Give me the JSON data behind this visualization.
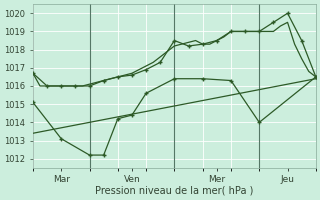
{
  "bg_color": "#cceedd",
  "grid_color": "#aaddcc",
  "line_color": "#2d5a27",
  "ylim": [
    1011.5,
    1020.5
  ],
  "yticks": [
    1012,
    1013,
    1014,
    1015,
    1016,
    1017,
    1018,
    1019,
    1020
  ],
  "xlabel": "Pression niveau de la mer( hPa )",
  "xlim": [
    0,
    240
  ],
  "vlines": [
    48,
    120,
    192
  ],
  "xtick_positions": [
    24,
    84,
    156,
    216
  ],
  "xtick_labels": [
    "Mar",
    "Ven",
    "Mer",
    "Jeu"
  ],
  "line1_x": [
    0,
    6,
    12,
    18,
    24,
    30,
    36,
    42,
    48,
    54,
    60,
    66,
    72,
    78,
    84,
    90,
    96,
    102,
    108,
    114,
    120,
    126,
    132,
    138,
    144,
    150,
    156,
    162,
    168,
    174,
    180,
    186,
    192,
    198,
    204,
    210,
    216,
    222,
    228,
    234,
    240
  ],
  "line1_y": [
    1016.7,
    1016.0,
    1016.0,
    1016.0,
    1016.0,
    1016.0,
    1016.0,
    1016.0,
    1016.1,
    1016.2,
    1016.3,
    1016.4,
    1016.5,
    1016.6,
    1016.7,
    1016.9,
    1017.1,
    1017.3,
    1017.6,
    1017.9,
    1018.2,
    1018.3,
    1018.4,
    1018.5,
    1018.3,
    1018.3,
    1018.5,
    1018.7,
    1019.0,
    1019.0,
    1019.0,
    1019.0,
    1019.0,
    1019.0,
    1019.0,
    1019.3,
    1019.5,
    1018.3,
    1017.5,
    1016.8,
    1016.5
  ],
  "line2_x": [
    0,
    12,
    24,
    36,
    48,
    60,
    72,
    84,
    96,
    108,
    120,
    132,
    144,
    156,
    168,
    180,
    192,
    204,
    216,
    228,
    240
  ],
  "line2_y": [
    1016.7,
    1016.0,
    1016.0,
    1016.0,
    1016.0,
    1016.3,
    1016.5,
    1016.6,
    1016.9,
    1017.3,
    1018.5,
    1018.2,
    1018.3,
    1018.5,
    1019.0,
    1019.0,
    1019.0,
    1019.5,
    1020.0,
    1018.5,
    1016.5
  ],
  "line3_x": [
    0,
    24,
    48,
    60,
    72,
    84,
    96,
    120,
    144,
    168,
    192,
    240
  ],
  "line3_y": [
    1015.1,
    1013.1,
    1012.2,
    1012.2,
    1014.2,
    1014.4,
    1015.6,
    1016.4,
    1016.4,
    1016.3,
    1014.0,
    1016.5
  ],
  "line4_x": [
    0,
    240
  ],
  "line4_y": [
    1013.4,
    1016.4
  ]
}
